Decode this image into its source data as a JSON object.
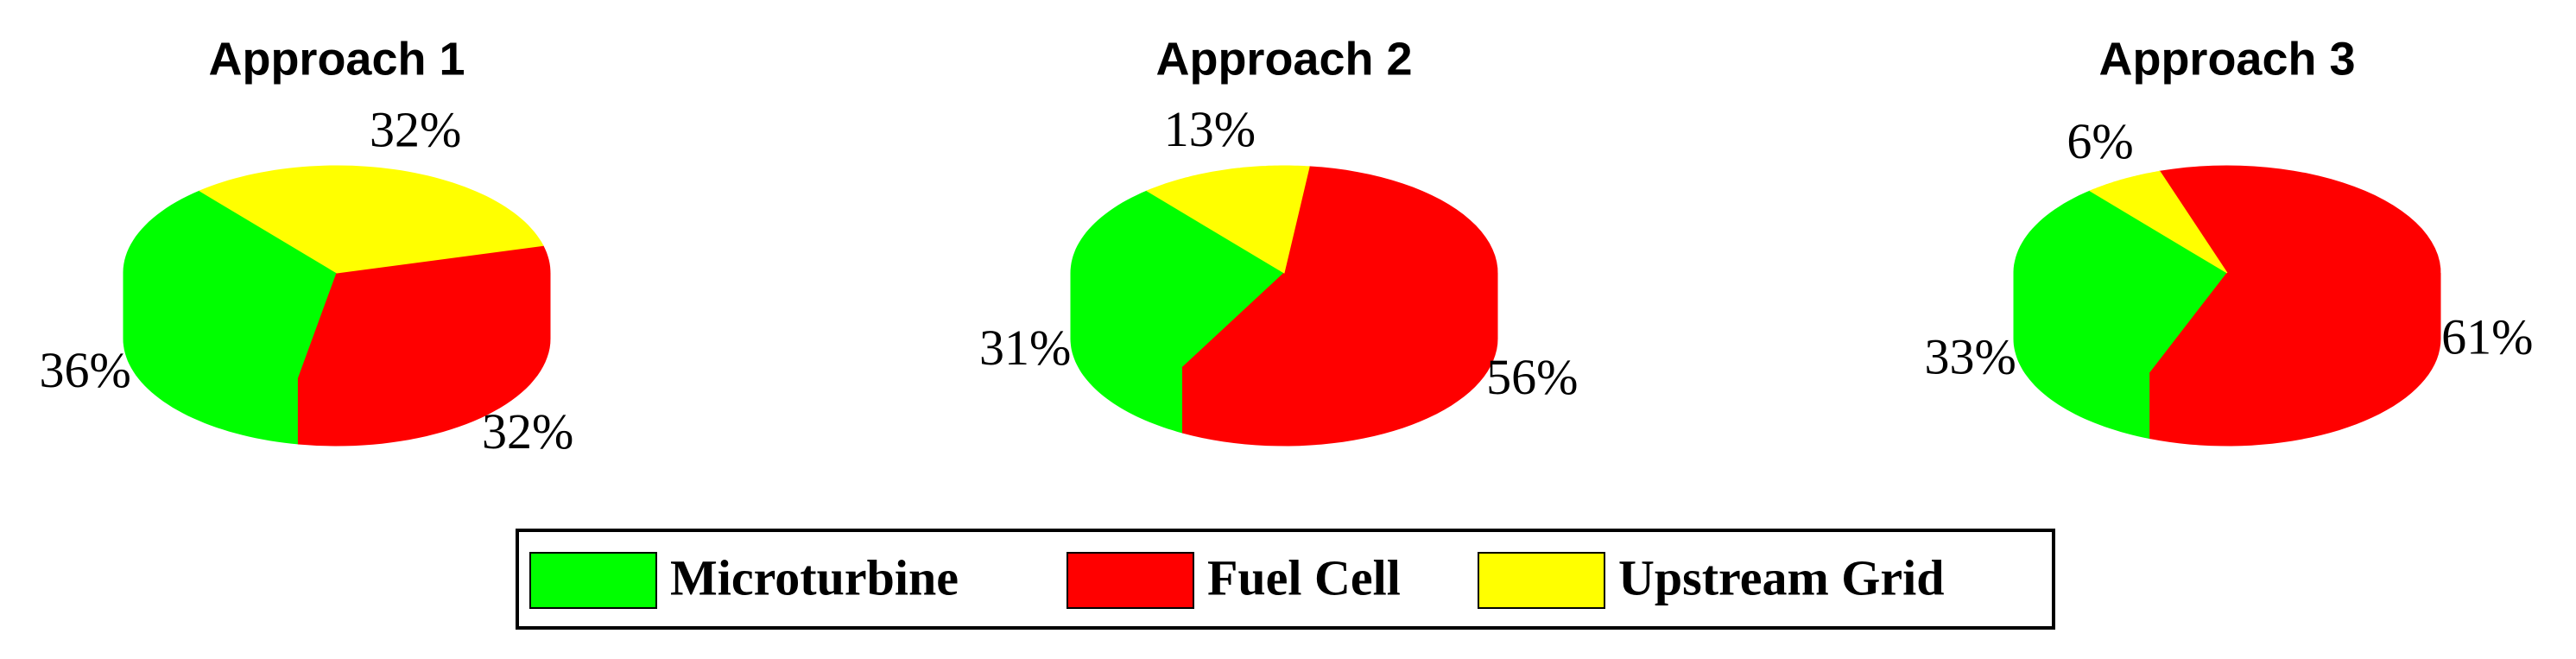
{
  "chart_data": [
    {
      "type": "pie",
      "title": "Approach 1",
      "values": [
        36,
        32,
        32
      ],
      "value_labels": [
        "36%",
        "32%",
        "32%"
      ]
    },
    {
      "type": "pie",
      "title": "Approach 2",
      "values": [
        31,
        56,
        13
      ],
      "value_labels": [
        "31%",
        "56%",
        "13%"
      ]
    },
    {
      "type": "pie",
      "title": "Approach 3",
      "values": [
        33,
        61,
        6
      ],
      "value_labels": [
        "33%",
        "61%",
        "6%"
      ]
    }
  ],
  "legend": {
    "labels": [
      "Microturbine",
      "Fuel Cell",
      "Upstream Grid"
    ],
    "colors": [
      "#00ff00",
      "#ff0000",
      "#ffff00"
    ]
  }
}
